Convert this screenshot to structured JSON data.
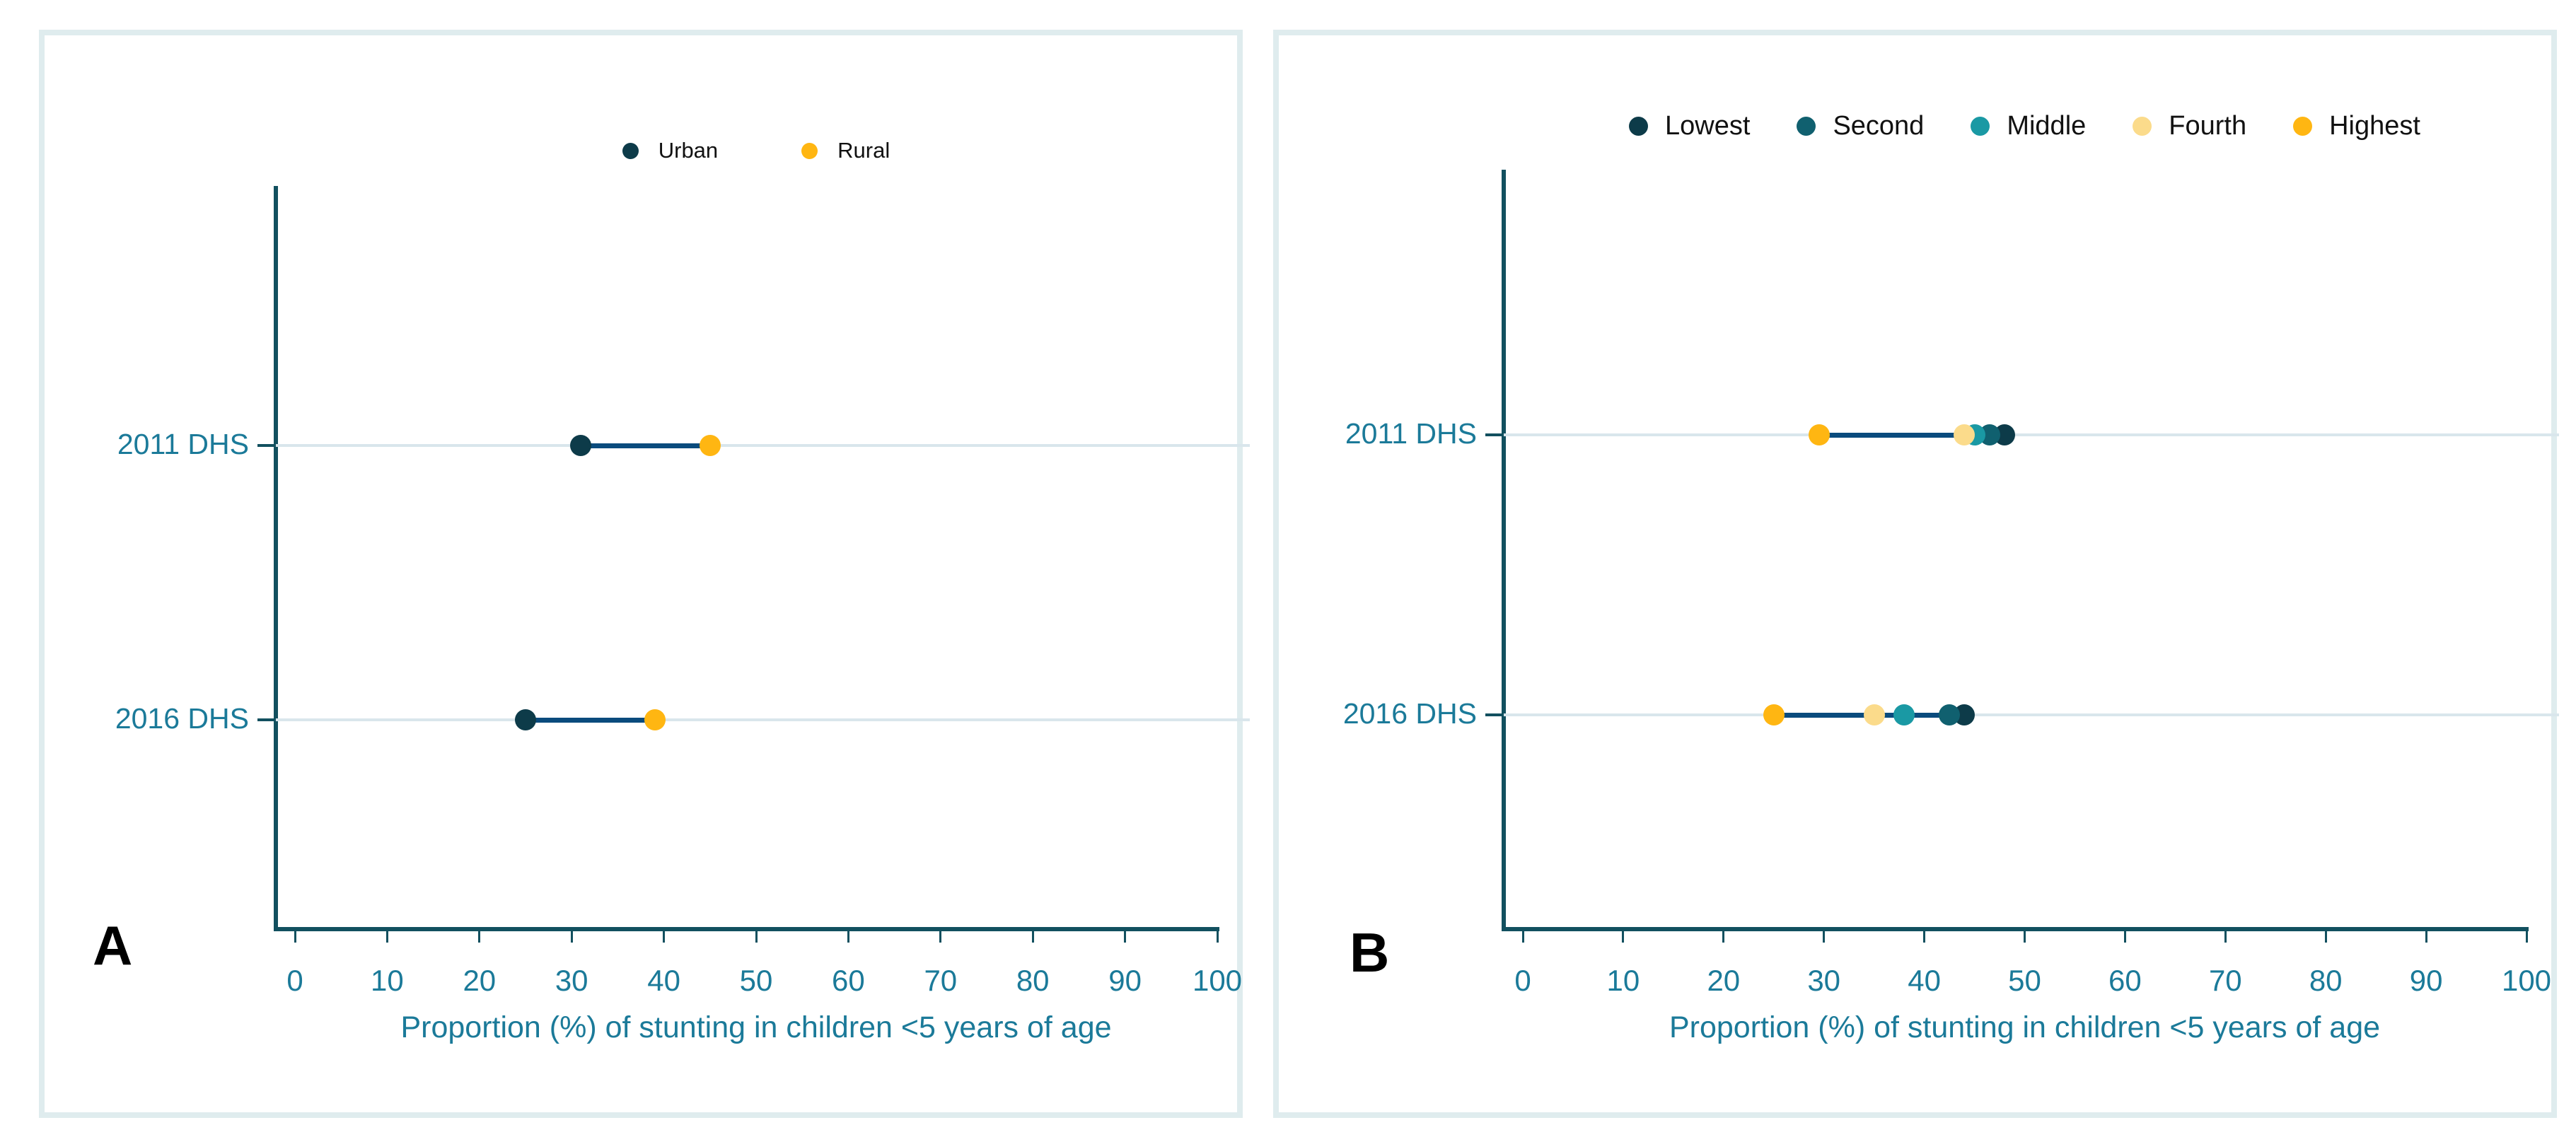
{
  "figure": {
    "panel_count": 2,
    "background": "#ffffff",
    "panel_border_color": "#dfecee",
    "axis_color": "#12505f",
    "axis_text_color": "#1b7a99",
    "gridline_color": "#d9e6ec",
    "connector_color": "#0a4b7d"
  },
  "chart_data": [
    {
      "type": "scatter",
      "subtype": "dumbbell-dot-plot",
      "panel_label": "A",
      "title": "",
      "xlabel": "Proportion (%) of stunting in children <5 years of age",
      "ylabel": "",
      "xlim": [
        0,
        100
      ],
      "x_ticks": [
        0,
        10,
        20,
        30,
        40,
        50,
        60,
        70,
        80,
        90,
        100
      ],
      "categories": [
        "2011 DHS",
        "2016 DHS"
      ],
      "grid": "horizontal-category-lines",
      "legend_position": "top-center",
      "legend": [
        "Urban",
        "Rural"
      ],
      "series": [
        {
          "name": "Urban",
          "color": "#0d3b49",
          "values": [
            31,
            25
          ]
        },
        {
          "name": "Rural",
          "color": "#ffb612",
          "values": [
            45,
            39
          ]
        }
      ],
      "connector_color": "#0a4b7d"
    },
    {
      "type": "scatter",
      "subtype": "dumbbell-dot-plot",
      "panel_label": "B",
      "title": "",
      "xlabel": "Proportion (%) of stunting in children <5 years of age",
      "ylabel": "",
      "xlim": [
        0,
        100
      ],
      "x_ticks": [
        0,
        10,
        20,
        30,
        40,
        50,
        60,
        70,
        80,
        90,
        100
      ],
      "categories": [
        "2011 DHS",
        "2016 DHS"
      ],
      "grid": "horizontal-category-lines",
      "legend_position": "top-center",
      "legend": [
        "Lowest",
        "Second",
        "Middle",
        "Fourth",
        "Highest"
      ],
      "series": [
        {
          "name": "Lowest",
          "color": "#0d3b49",
          "values": [
            48,
            44
          ]
        },
        {
          "name": "Second",
          "color": "#10606f",
          "values": [
            46.5,
            42.5
          ]
        },
        {
          "name": "Middle",
          "color": "#1a99a4",
          "values": [
            45,
            38
          ]
        },
        {
          "name": "Fourth",
          "color": "#fbdb8b",
          "values": [
            44,
            35
          ]
        },
        {
          "name": "Highest",
          "color": "#ffb612",
          "values": [
            29.5,
            25
          ]
        }
      ],
      "connector_color": "#0a4b7d"
    }
  ]
}
